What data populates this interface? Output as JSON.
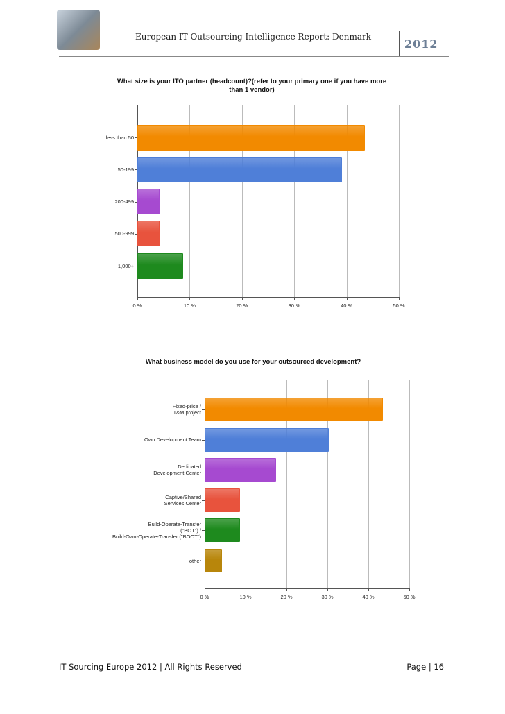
{
  "header": {
    "title": "European IT Outsourcing Intelligence Report: Denmark",
    "year": "2012"
  },
  "footer": {
    "left": "IT Sourcing Europe 2012 | All Rights Reserved",
    "right": "Page | 16"
  },
  "chart_data": [
    {
      "type": "bar",
      "orientation": "horizontal",
      "title": "What size is your ITO partner (headcount)?(refer to your primary one if you have more than 1 vendor)",
      "categories": [
        "less than 50",
        "50-199",
        "200-499",
        "500-999",
        "1,000+"
      ],
      "values": [
        43.5,
        39.1,
        4.3,
        4.3,
        8.7
      ],
      "colors": [
        "#f28a00",
        "#4f7fd8",
        "#a64ad0",
        "#e8533d",
        "#1e8a1e"
      ],
      "xlim": [
        0,
        50
      ],
      "xticks": [
        {
          "value": 0,
          "label": "0 %"
        },
        {
          "value": 10,
          "label": "10 %"
        },
        {
          "value": 20,
          "label": "20 %"
        },
        {
          "value": 30,
          "label": "30 %"
        },
        {
          "value": 40,
          "label": "40 %"
        },
        {
          "value": 50,
          "label": "50 %"
        }
      ],
      "grid": true
    },
    {
      "type": "bar",
      "orientation": "horizontal",
      "title": "What business model do you use for your outsourced development?",
      "categories": [
        "Fixed-price /\nT&M project",
        "Own Development Team",
        "Dedicated\nDevelopment Center",
        "Captive/Shared\nServices Center",
        "Build-Operate-Transfer\n(\"BOT\") /\nBuild-Own-Operate-Transfer  (\"BOOT\")",
        "other"
      ],
      "values": [
        43.5,
        30.4,
        17.4,
        8.7,
        8.7,
        4.3
      ],
      "colors": [
        "#f28a00",
        "#4f7fd8",
        "#a64ad0",
        "#e8533d",
        "#1e8a1e",
        "#b8860b"
      ],
      "xlim": [
        0,
        50
      ],
      "xticks": [
        {
          "value": 0,
          "label": "0 %"
        },
        {
          "value": 10,
          "label": "10 %"
        },
        {
          "value": 20,
          "label": "20 %"
        },
        {
          "value": 30,
          "label": "30 %"
        },
        {
          "value": 40,
          "label": "40 %"
        },
        {
          "value": 50,
          "label": "50 %"
        }
      ],
      "grid": true
    }
  ]
}
